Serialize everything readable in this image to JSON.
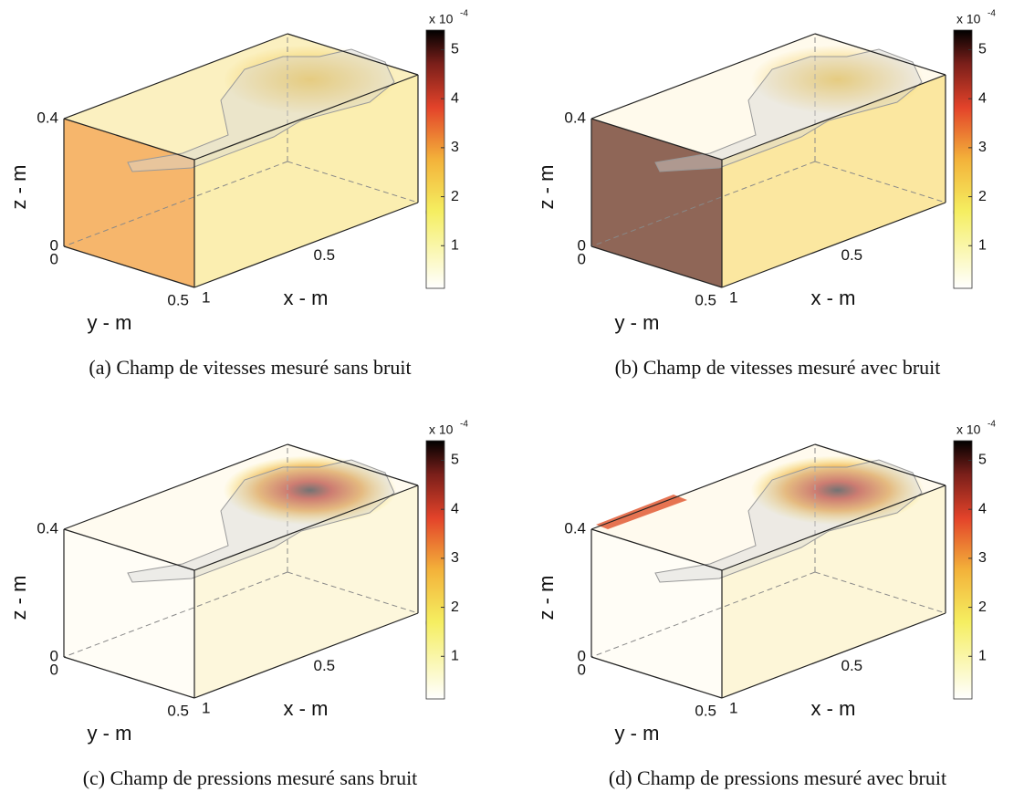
{
  "chart_data": [
    {
      "type": "voxel3d",
      "caption": "(a) Champ de vitesses mesuré sans bruit",
      "xlabel": "x - m",
      "ylabel": "y - m",
      "zlabel": "z - m",
      "xlim": [
        0,
        1
      ],
      "ylim": [
        0,
        0.5
      ],
      "zlim": [
        0,
        0.4
      ],
      "xticks": [
        0,
        0.5,
        1
      ],
      "yticks": [
        0,
        0.5
      ],
      "zticks": [
        0,
        0.4
      ],
      "colorbar": {
        "label_base": "x 10",
        "label_exponent": "-4",
        "lim": [
          0.13,
          5.4
        ],
        "ticks": [
          1,
          2,
          3,
          4,
          5
        ]
      }
    },
    {
      "type": "voxel3d",
      "caption": "(b) Champ de vitesses mesuré avec bruit",
      "xlabel": "x - m",
      "ylabel": "y - m",
      "zlabel": "z - m",
      "xlim": [
        0,
        1
      ],
      "ylim": [
        0,
        0.5
      ],
      "zlim": [
        0,
        0.4
      ],
      "xticks": [
        0,
        0.5,
        1
      ],
      "yticks": [
        0,
        0.5
      ],
      "zticks": [
        0,
        0.4
      ],
      "colorbar": {
        "label_base": "x 10",
        "label_exponent": "-4",
        "lim": [
          0.13,
          5.4
        ],
        "ticks": [
          1,
          2,
          3,
          4,
          5
        ]
      }
    },
    {
      "type": "voxel3d",
      "caption": "(c) Champ de pressions mesuré sans bruit",
      "xlabel": "x - m",
      "ylabel": "y - m",
      "zlabel": "z - m",
      "xlim": [
        0,
        1
      ],
      "ylim": [
        0,
        0.5
      ],
      "zlim": [
        0,
        0.4
      ],
      "xticks": [
        0,
        0.5,
        1
      ],
      "yticks": [
        0,
        0.5
      ],
      "zticks": [
        0,
        0.4
      ],
      "colorbar": {
        "label_base": "x 10",
        "label_exponent": "-4",
        "lim": [
          0.13,
          5.4
        ],
        "ticks": [
          1,
          2,
          3,
          4,
          5
        ]
      }
    },
    {
      "type": "voxel3d",
      "caption": "(d) Champ de pressions mesuré avec bruit",
      "xlabel": "x - m",
      "ylabel": "y - m",
      "zlabel": "z - m",
      "xlim": [
        0,
        1
      ],
      "ylim": [
        0,
        0.5
      ],
      "zlim": [
        0,
        0.4
      ],
      "xticks": [
        0,
        0.5,
        1
      ],
      "yticks": [
        0,
        0.5
      ],
      "zticks": [
        0,
        0.4
      ],
      "colorbar": {
        "label_base": "x 10",
        "label_exponent": "-4",
        "lim": [
          0.13,
          5.4
        ],
        "ticks": [
          1,
          2,
          3,
          4,
          5
        ]
      }
    }
  ]
}
